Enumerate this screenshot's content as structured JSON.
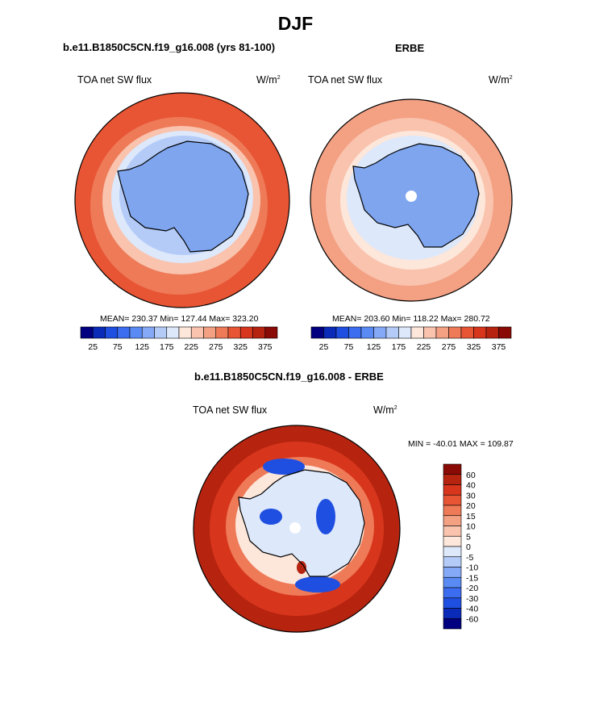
{
  "figure": {
    "title": "DJF",
    "colors": {
      "ocean_model": "#e8552e",
      "ocean_model_outer": "#e0452a",
      "ocean_obs": "#f6b49a",
      "ocean_obs_outer": "#f4a383",
      "ice_blue": "#7ea5ee",
      "ice_light": "#c9dbf8",
      "coast": "#000000"
    }
  },
  "panels": {
    "model": {
      "title": "b.e11.B1850C5CN.f19_g16.008 (yrs 81-100)",
      "variable": "TOA net SW flux",
      "units_base": "W/m",
      "units_exp": "2",
      "stats": "MEAN= 230.37  Min= 127.44  Max= 323.20"
    },
    "obs": {
      "title": "ERBE",
      "variable": "TOA net SW flux",
      "units_base": "W/m",
      "units_exp": "2",
      "stats": "MEAN= 203.60  Min= 118.22  Max= 280.72"
    },
    "diff": {
      "title": "b.e11.B1850C5CN.f19_g16.008 - ERBE",
      "variable": "TOA net SW flux",
      "units_base": "W/m",
      "units_exp": "2",
      "stats": "MIN = -40.01 MAX = 109.87"
    }
  },
  "chart_data": [
    {
      "type": "heatmap",
      "projection": "south polar stereographic",
      "title": "b.e11.B1850C5CN.f19_g16.008 (yrs 81-100)",
      "variable": "TOA net SW flux",
      "units": "W/m2",
      "mean": 230.37,
      "min": 127.44,
      "max": 323.2,
      "colorbar": {
        "levels": [
          25,
          50,
          75,
          100,
          125,
          150,
          175,
          200,
          225,
          250,
          275,
          300,
          325,
          350,
          375
        ],
        "tick_labels": [
          "25",
          "75",
          "125",
          "175",
          "225",
          "275",
          "325",
          "375"
        ],
        "colors": [
          "#000080",
          "#0a2ab8",
          "#1f4fe0",
          "#3c6df0",
          "#5a8bf5",
          "#86a9f7",
          "#b4cbf8",
          "#dde8fb",
          "#fde6da",
          "#f9c3ad",
          "#f3a083",
          "#ee7a58",
          "#e85534",
          "#d8361c",
          "#b62410",
          "#8a0a05"
        ]
      }
    },
    {
      "type": "heatmap",
      "projection": "south polar stereographic",
      "title": "ERBE",
      "variable": "TOA net SW flux",
      "units": "W/m2",
      "mean": 203.6,
      "min": 118.22,
      "max": 280.72,
      "colorbar": {
        "levels": [
          25,
          50,
          75,
          100,
          125,
          150,
          175,
          200,
          225,
          250,
          275,
          300,
          325,
          350,
          375
        ],
        "tick_labels": [
          "25",
          "75",
          "125",
          "175",
          "225",
          "275",
          "325",
          "375"
        ],
        "colors": [
          "#000080",
          "#0a2ab8",
          "#1f4fe0",
          "#3c6df0",
          "#5a8bf5",
          "#86a9f7",
          "#b4cbf8",
          "#dde8fb",
          "#fde6da",
          "#f9c3ad",
          "#f3a083",
          "#ee7a58",
          "#e85534",
          "#d8361c",
          "#b62410",
          "#8a0a05"
        ]
      }
    },
    {
      "type": "heatmap",
      "projection": "south polar stereographic",
      "title": "b.e11.B1850C5CN.f19_g16.008 - ERBE",
      "variable": "TOA net SW flux",
      "units": "W/m2",
      "min": -40.01,
      "max": 109.87,
      "colorbar": {
        "levels": [
          60,
          40,
          30,
          20,
          15,
          10,
          5,
          0,
          -5,
          -10,
          -15,
          -20,
          -30,
          -40,
          -60
        ],
        "tick_labels": [
          "60",
          "40",
          "30",
          "20",
          "15",
          "10",
          "5",
          "0",
          "-5",
          "-10",
          "-15",
          "-20",
          "-30",
          "-40",
          "-60"
        ],
        "colors": [
          "#8a0a05",
          "#b62410",
          "#d8361c",
          "#e85534",
          "#ee7a58",
          "#f3a083",
          "#f9c3ad",
          "#fde6da",
          "#dde8fb",
          "#b4cbf8",
          "#86a9f7",
          "#5a8bf5",
          "#3c6df0",
          "#1f4fe0",
          "#0a2ab8",
          "#000080"
        ]
      }
    }
  ]
}
